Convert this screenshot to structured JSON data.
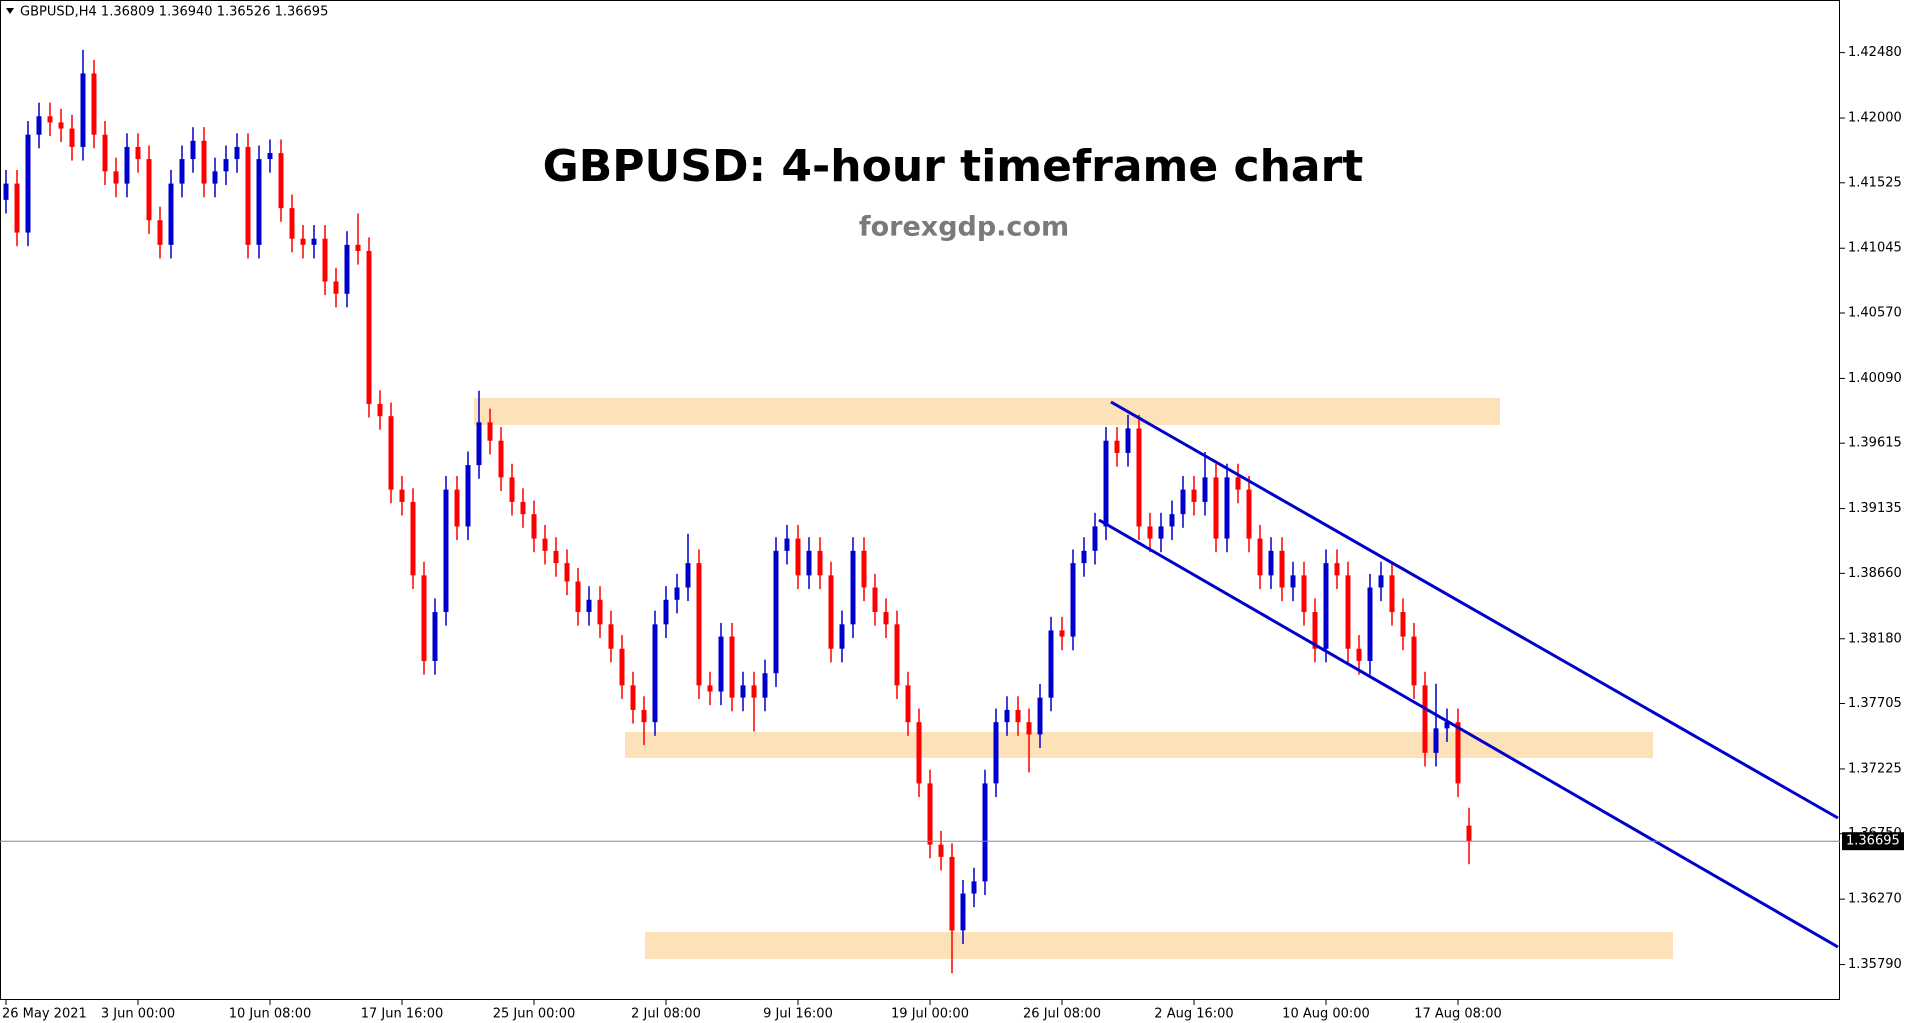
{
  "chart_data": {
    "type": "candlestick",
    "header": "GBPUSD,H4  1.36809 1.36940 1.36526 1.36695",
    "title": "GBPUSD: 4-hour timeframe chart",
    "subtitle": "forexgdp.com",
    "up_color": "#0000cc",
    "down_color": "#ff0000",
    "categories": [
      "26 May 2021",
      null,
      null,
      null,
      null,
      null,
      null,
      null,
      null,
      null,
      null,
      null,
      "3 Jun 00:00",
      null,
      null,
      null,
      null,
      null,
      null,
      null,
      null,
      null,
      null,
      null,
      "10 Jun 08:00",
      null,
      null,
      null,
      null,
      null,
      null,
      null,
      null,
      null,
      null,
      null,
      "17 Jun 16:00",
      null,
      null,
      null,
      null,
      null,
      null,
      null,
      null,
      null,
      null,
      null,
      "25 Jun 00:00",
      null,
      null,
      null,
      null,
      null,
      null,
      null,
      null,
      null,
      null,
      null,
      "2 Jul 08:00",
      null,
      null,
      null,
      null,
      null,
      null,
      null,
      null,
      null,
      null,
      null,
      "9 Jul 16:00",
      null,
      null,
      null,
      null,
      null,
      null,
      null,
      null,
      null,
      null,
      null,
      "19 Jul 00:00",
      null,
      null,
      null,
      null,
      null,
      null,
      null,
      null,
      null,
      null,
      null,
      "26 Jul 08:00",
      null,
      null,
      null,
      null,
      null,
      null,
      null,
      null,
      null,
      null,
      null,
      "2 Aug 16:00",
      null,
      null,
      null,
      null,
      null,
      null,
      null,
      null,
      null,
      null,
      null,
      "10 Aug 00:00",
      null,
      null,
      null,
      null,
      null,
      null,
      null,
      null,
      null,
      null,
      null,
      "17 Aug 08:00",
      null
    ],
    "open": [
      1.414,
      1.41519,
      1.4116,
      1.41878,
      1.42013,
      1.41968,
      1.41923,
      1.41788,
      1.42327,
      1.41878,
      1.41609,
      1.41519,
      1.41788,
      1.41699,
      1.4125,
      1.4107,
      1.41519,
      1.41699,
      1.41833,
      1.41519,
      1.41609,
      1.41699,
      1.41788,
      1.4107,
      1.41699,
      1.41743,
      1.41339,
      1.41115,
      1.4107,
      1.41115,
      1.40801,
      1.40711,
      1.4107,
      1.41025,
      1.39903,
      1.39813,
      1.39274,
      1.39184,
      1.38645,
      1.38017,
      1.38376,
      1.39274,
      1.39004,
      1.39454,
      1.39768,
      1.39633,
      1.39364,
      1.39184,
      1.39094,
      1.38915,
      1.38825,
      1.38735,
      1.386,
      1.38376,
      1.38466,
      1.38286,
      1.38107,
      1.37838,
      1.37658,
      1.37568,
      1.38286,
      1.38466,
      1.38556,
      1.38735,
      1.37838,
      1.37793,
      1.38196,
      1.37748,
      1.37838,
      1.37748,
      1.37927,
      1.38825,
      1.38915,
      1.38645,
      1.38825,
      1.38645,
      1.38107,
      1.38286,
      1.38825,
      1.38556,
      1.38376,
      1.38286,
      1.37838,
      1.37568,
      1.37119,
      1.3667,
      1.3658,
      1.36041,
      1.36311,
      1.364,
      1.37119,
      1.37568,
      1.37658,
      1.37568,
      1.37478,
      1.37748,
      1.38241,
      1.38196,
      1.38735,
      1.38825,
      1.39004,
      1.39633,
      1.39543,
      1.39723,
      1.39004,
      1.38915,
      1.39004,
      1.39094,
      1.39274,
      1.39184,
      1.39364,
      1.38915,
      1.39364,
      1.39274,
      1.38915,
      1.38645,
      1.38825,
      1.38556,
      1.38645,
      1.38376,
      1.38107,
      1.38735,
      1.38645,
      1.38107,
      1.38017,
      1.38556,
      1.38645,
      1.38376,
      1.38196,
      1.37838,
      1.37343,
      1.37523,
      1.37568,
      1.36809
    ],
    "high": [
      1.41619,
      1.41619,
      1.41978,
      1.42113,
      1.42113,
      1.42068,
      1.42023,
      1.425,
      1.42427,
      1.41978,
      1.41709,
      1.41888,
      1.41888,
      1.41799,
      1.4135,
      1.41619,
      1.41799,
      1.41933,
      1.41933,
      1.41709,
      1.41799,
      1.41888,
      1.41888,
      1.41799,
      1.41843,
      1.41843,
      1.41439,
      1.41215,
      1.41215,
      1.41215,
      1.40901,
      1.4117,
      1.413,
      1.41125,
      1.40003,
      1.39913,
      1.39374,
      1.39284,
      1.38745,
      1.38476,
      1.39374,
      1.39374,
      1.39554,
      1.4,
      1.39868,
      1.39733,
      1.39464,
      1.39284,
      1.39194,
      1.39015,
      1.38925,
      1.38835,
      1.387,
      1.38566,
      1.38566,
      1.38386,
      1.38207,
      1.37938,
      1.37758,
      1.38386,
      1.38566,
      1.38656,
      1.3895,
      1.38835,
      1.37938,
      1.38296,
      1.38296,
      1.37938,
      1.37938,
      1.38027,
      1.38925,
      1.39015,
      1.39015,
      1.38925,
      1.38925,
      1.38745,
      1.38386,
      1.38925,
      1.38925,
      1.38656,
      1.38476,
      1.38386,
      1.37938,
      1.37668,
      1.37219,
      1.3677,
      1.3668,
      1.36411,
      1.365,
      1.37219,
      1.37668,
      1.37758,
      1.37758,
      1.37668,
      1.37848,
      1.38341,
      1.38341,
      1.38835,
      1.38925,
      1.39104,
      1.39733,
      1.39733,
      1.39823,
      1.39823,
      1.39104,
      1.39104,
      1.39194,
      1.39374,
      1.39374,
      1.3955,
      1.39464,
      1.39464,
      1.39464,
      1.39374,
      1.39015,
      1.38925,
      1.38925,
      1.38745,
      1.38745,
      1.38476,
      1.38835,
      1.38835,
      1.38745,
      1.38207,
      1.38656,
      1.38745,
      1.38745,
      1.38476,
      1.38296,
      1.37938,
      1.3785,
      1.37668,
      1.37668,
      1.3694
    ],
    "low": [
      1.413,
      1.4106,
      1.4106,
      1.41778,
      1.41868,
      1.41823,
      1.41688,
      1.41688,
      1.41778,
      1.41509,
      1.41419,
      1.41419,
      1.41599,
      1.4115,
      1.4097,
      1.4097,
      1.41419,
      1.41599,
      1.41419,
      1.41419,
      1.41509,
      1.41599,
      1.4097,
      1.4097,
      1.41599,
      1.41239,
      1.41015,
      1.4097,
      1.4097,
      1.40701,
      1.40611,
      1.40611,
      1.40925,
      1.39803,
      1.39713,
      1.39174,
      1.39084,
      1.38545,
      1.37917,
      1.37917,
      1.38276,
      1.38904,
      1.38904,
      1.39354,
      1.39533,
      1.39264,
      1.39084,
      1.38994,
      1.38815,
      1.38725,
      1.38635,
      1.385,
      1.38276,
      1.38276,
      1.38186,
      1.38007,
      1.37738,
      1.37558,
      1.374,
      1.37468,
      1.38186,
      1.38366,
      1.38456,
      1.37738,
      1.37693,
      1.37693,
      1.37648,
      1.37648,
      1.375,
      1.37648,
      1.37827,
      1.38725,
      1.38545,
      1.38545,
      1.38545,
      1.38007,
      1.38007,
      1.38186,
      1.38456,
      1.38276,
      1.38186,
      1.37738,
      1.37468,
      1.37019,
      1.3657,
      1.3648,
      1.35727,
      1.35941,
      1.36211,
      1.363,
      1.37019,
      1.37468,
      1.37468,
      1.372,
      1.37378,
      1.37648,
      1.38096,
      1.38096,
      1.38635,
      1.38725,
      1.38904,
      1.39443,
      1.39443,
      1.38904,
      1.38815,
      1.38815,
      1.38904,
      1.38994,
      1.39084,
      1.39084,
      1.38815,
      1.38815,
      1.39174,
      1.38815,
      1.38545,
      1.38545,
      1.38456,
      1.38456,
      1.38276,
      1.38007,
      1.38007,
      1.38545,
      1.38007,
      1.37917,
      1.37917,
      1.38456,
      1.38276,
      1.38096,
      1.37738,
      1.37243,
      1.37243,
      1.37423,
      1.37019,
      1.36526
    ],
    "close": [
      1.41519,
      1.4116,
      1.41878,
      1.42013,
      1.41968,
      1.41923,
      1.41788,
      1.42327,
      1.41878,
      1.41609,
      1.41519,
      1.41788,
      1.41699,
      1.4125,
      1.4107,
      1.41519,
      1.41699,
      1.41833,
      1.41519,
      1.41609,
      1.41699,
      1.41788,
      1.4107,
      1.41699,
      1.41743,
      1.41339,
      1.41115,
      1.4107,
      1.41115,
      1.40801,
      1.40711,
      1.4107,
      1.41025,
      1.39903,
      1.39813,
      1.39274,
      1.39184,
      1.38645,
      1.38017,
      1.38376,
      1.39274,
      1.39004,
      1.39454,
      1.39768,
      1.39633,
      1.39364,
      1.39184,
      1.39094,
      1.38915,
      1.38825,
      1.38735,
      1.386,
      1.38376,
      1.38466,
      1.38286,
      1.38107,
      1.37838,
      1.37658,
      1.37568,
      1.38286,
      1.38466,
      1.38556,
      1.38735,
      1.37838,
      1.37793,
      1.38196,
      1.37748,
      1.37838,
      1.37748,
      1.37927,
      1.38825,
      1.38915,
      1.38645,
      1.38825,
      1.38645,
      1.38107,
      1.38286,
      1.38825,
      1.38556,
      1.38376,
      1.38286,
      1.37838,
      1.37568,
      1.37119,
      1.3667,
      1.3658,
      1.36041,
      1.36311,
      1.364,
      1.37119,
      1.37568,
      1.37658,
      1.37568,
      1.37478,
      1.37748,
      1.38241,
      1.38196,
      1.38735,
      1.38825,
      1.39004,
      1.39633,
      1.39543,
      1.39723,
      1.39004,
      1.38915,
      1.39004,
      1.39094,
      1.39274,
      1.39184,
      1.39364,
      1.38915,
      1.39364,
      1.39274,
      1.38915,
      1.38645,
      1.38825,
      1.38556,
      1.38645,
      1.38376,
      1.38107,
      1.38735,
      1.38645,
      1.38107,
      1.38017,
      1.38556,
      1.38645,
      1.38376,
      1.38196,
      1.37838,
      1.37343,
      1.37523,
      1.37568,
      1.37119,
      1.36695
    ],
    "ylim": [
      1.3553,
      1.42866
    ],
    "yticks": [
      {
        "value": 1.4248,
        "label": "1.42480"
      },
      {
        "value": 1.42,
        "label": "1.42000"
      },
      {
        "value": 1.41525,
        "label": "1.41525"
      },
      {
        "value": 1.41045,
        "label": "1.41045"
      },
      {
        "value": 1.4057,
        "label": "1.40570"
      },
      {
        "value": 1.4009,
        "label": "1.40090"
      },
      {
        "value": 1.39615,
        "label": "1.39615"
      },
      {
        "value": 1.39135,
        "label": "1.39135"
      },
      {
        "value": 1.3866,
        "label": "1.38660"
      },
      {
        "value": 1.3818,
        "label": "1.38180"
      },
      {
        "value": 1.37705,
        "label": "1.37705"
      },
      {
        "value": 1.37225,
        "label": "1.37225"
      },
      {
        "value": 1.3675,
        "label": "1.36750"
      },
      {
        "value": 1.3627,
        "label": "1.36270"
      },
      {
        "value": 1.3579,
        "label": "1.35790"
      }
    ],
    "last_price": {
      "value": 1.36695,
      "label": "1.36695"
    }
  }
}
